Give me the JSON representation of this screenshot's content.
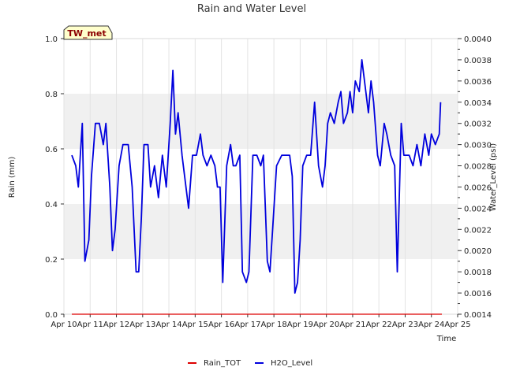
{
  "chart_data": {
    "type": "line",
    "title": "Rain and Water Level",
    "xlabel": "Time",
    "ylabel_left": "Rain (mm)",
    "ylabel_right": "Water_Level (psi)",
    "site_label": "TW_met",
    "x_ticks": [
      "Apr 10",
      "Apr 11",
      "Apr 12",
      "Apr 13",
      "Apr 14",
      "Apr 15",
      "Apr 16",
      "Apr 17",
      "Apr 18",
      "Apr 19",
      "Apr 20",
      "Apr 21",
      "Apr 22",
      "Apr 23",
      "Apr 24",
      "Apr 25"
    ],
    "x_range": [
      10,
      25
    ],
    "y_left": {
      "range": [
        0.0,
        1.0
      ],
      "ticks": [
        "0.0",
        "0.2",
        "0.4",
        "0.6",
        "0.8",
        "1.0"
      ],
      "tick_values": [
        0.0,
        0.2,
        0.4,
        0.6,
        0.8,
        1.0
      ]
    },
    "y_right": {
      "range": [
        0.0014,
        0.004
      ],
      "ticks": [
        "0.0014",
        "0.0016",
        "0.0018",
        "0.0020",
        "0.0022",
        "0.0024",
        "0.0026",
        "0.0028",
        "0.0030",
        "0.0032",
        "0.0034",
        "0.0036",
        "0.0038",
        "0.0040"
      ],
      "tick_values": [
        0.0014,
        0.0016,
        0.0018,
        0.002,
        0.0022,
        0.0024,
        0.0026,
        0.0028,
        0.003,
        0.0032,
        0.0034,
        0.0036,
        0.0038,
        0.004
      ]
    },
    "background_bands": [
      [
        0.2,
        0.4
      ],
      [
        0.6,
        0.8
      ]
    ],
    "legend_position": "bottom-center",
    "series": [
      {
        "name": "Rain_TOT",
        "color": "#dd0000",
        "axis": "left",
        "x": [
          10.3,
          24.4
        ],
        "y": [
          0.0,
          0.0
        ]
      },
      {
        "name": "H2O_Level",
        "color": "#0000dd",
        "axis": "right",
        "x": [
          10.3,
          10.45,
          10.55,
          10.7,
          10.8,
          10.95,
          11.05,
          11.2,
          11.35,
          11.5,
          11.6,
          11.75,
          11.85,
          11.95,
          12.1,
          12.25,
          12.45,
          12.6,
          12.75,
          12.85,
          12.95,
          13.05,
          13.2,
          13.3,
          13.45,
          13.6,
          13.75,
          13.9,
          14.05,
          14.15,
          14.25,
          14.35,
          14.5,
          14.6,
          14.75,
          14.9,
          15.05,
          15.2,
          15.3,
          15.45,
          15.6,
          15.75,
          15.85,
          15.95,
          16.05,
          16.2,
          16.35,
          16.45,
          16.55,
          16.7,
          16.8,
          16.95,
          17.05,
          17.2,
          17.35,
          17.5,
          17.6,
          17.75,
          17.85,
          17.95,
          18.1,
          18.3,
          18.45,
          18.6,
          18.7,
          18.8,
          18.9,
          19.0,
          19.1,
          19.25,
          19.4,
          19.55,
          19.7,
          19.85,
          19.95,
          20.05,
          20.15,
          20.3,
          20.45,
          20.55,
          20.65,
          20.8,
          20.9,
          21.0,
          21.1,
          21.25,
          21.35,
          21.5,
          21.6,
          21.7,
          21.8,
          21.95,
          22.05,
          22.2,
          22.3,
          22.45,
          22.6,
          22.7,
          22.85,
          22.95,
          23.05,
          23.15,
          23.3,
          23.45,
          23.6,
          23.75,
          23.9,
          24.0,
          24.15,
          24.3,
          24.35
        ],
        "y": [
          0.0029,
          0.0028,
          0.0026,
          0.0032,
          0.0019,
          0.0021,
          0.0027,
          0.0032,
          0.0032,
          0.003,
          0.0032,
          0.0026,
          0.002,
          0.0022,
          0.0028,
          0.003,
          0.003,
          0.0026,
          0.0018,
          0.0018,
          0.0023,
          0.003,
          0.003,
          0.0026,
          0.0028,
          0.0025,
          0.0029,
          0.0026,
          0.0032,
          0.0037,
          0.0031,
          0.0033,
          0.0029,
          0.0027,
          0.0024,
          0.0029,
          0.0029,
          0.0031,
          0.0029,
          0.0028,
          0.0029,
          0.0028,
          0.0026,
          0.0026,
          0.0017,
          0.0028,
          0.003,
          0.0028,
          0.0028,
          0.0029,
          0.0018,
          0.0017,
          0.0018,
          0.0029,
          0.0029,
          0.0028,
          0.0029,
          0.0019,
          0.0018,
          0.0022,
          0.0028,
          0.0029,
          0.0029,
          0.0029,
          0.0027,
          0.0016,
          0.0017,
          0.0021,
          0.0028,
          0.0029,
          0.0029,
          0.0034,
          0.0028,
          0.0026,
          0.0028,
          0.0032,
          0.0033,
          0.0032,
          0.0034,
          0.0035,
          0.0032,
          0.0033,
          0.0035,
          0.0033,
          0.0036,
          0.0035,
          0.0038,
          0.0035,
          0.0033,
          0.0036,
          0.0034,
          0.0029,
          0.0028,
          0.0032,
          0.0031,
          0.0029,
          0.0028,
          0.0018,
          0.0032,
          0.0029,
          0.0029,
          0.0029,
          0.0028,
          0.003,
          0.0028,
          0.0031,
          0.0029,
          0.0031,
          0.003,
          0.0031,
          0.0034
        ]
      }
    ]
  }
}
